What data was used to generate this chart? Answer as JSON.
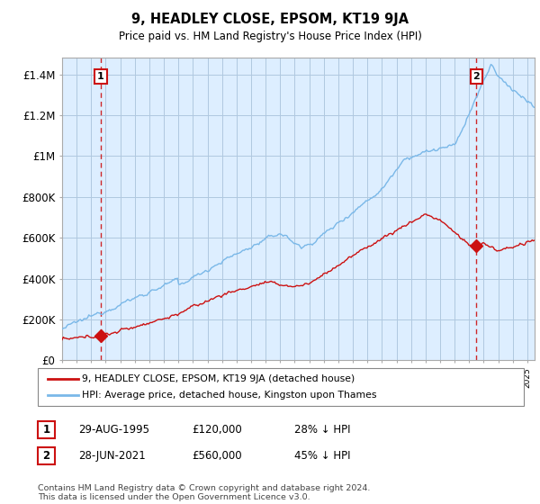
{
  "title": "9, HEADLEY CLOSE, EPSOM, KT19 9JA",
  "subtitle": "Price paid vs. HM Land Registry's House Price Index (HPI)",
  "ylabel_ticks": [
    "£0",
    "£200K",
    "£400K",
    "£600K",
    "£800K",
    "£1M",
    "£1.2M",
    "£1.4M"
  ],
  "ylabel_values": [
    0,
    200000,
    400000,
    600000,
    800000,
    1000000,
    1200000,
    1400000
  ],
  "ylim": [
    0,
    1480000
  ],
  "xlim_start": 1993.0,
  "xlim_end": 2025.5,
  "hpi_color": "#7ab8e8",
  "price_color": "#cc1111",
  "bg_color": "#ddeeff",
  "sale1_year": 1995.66,
  "sale1_price": 120000,
  "sale2_year": 2021.49,
  "sale2_price": 560000,
  "sale1_date": "29-AUG-1995",
  "sale1_amount": "£120,000",
  "sale1_pct": "28% ↓ HPI",
  "sale2_date": "28-JUN-2021",
  "sale2_amount": "£560,000",
  "sale2_pct": "45% ↓ HPI",
  "legend_line1": "9, HEADLEY CLOSE, EPSOM, KT19 9JA (detached house)",
  "legend_line2": "HPI: Average price, detached house, Kingston upon Thames",
  "footnote": "Contains HM Land Registry data © Crown copyright and database right 2024.\nThis data is licensed under the Open Government Licence v3.0.",
  "grid_color": "#b0c8e0",
  "dashed_color": "#cc1111"
}
